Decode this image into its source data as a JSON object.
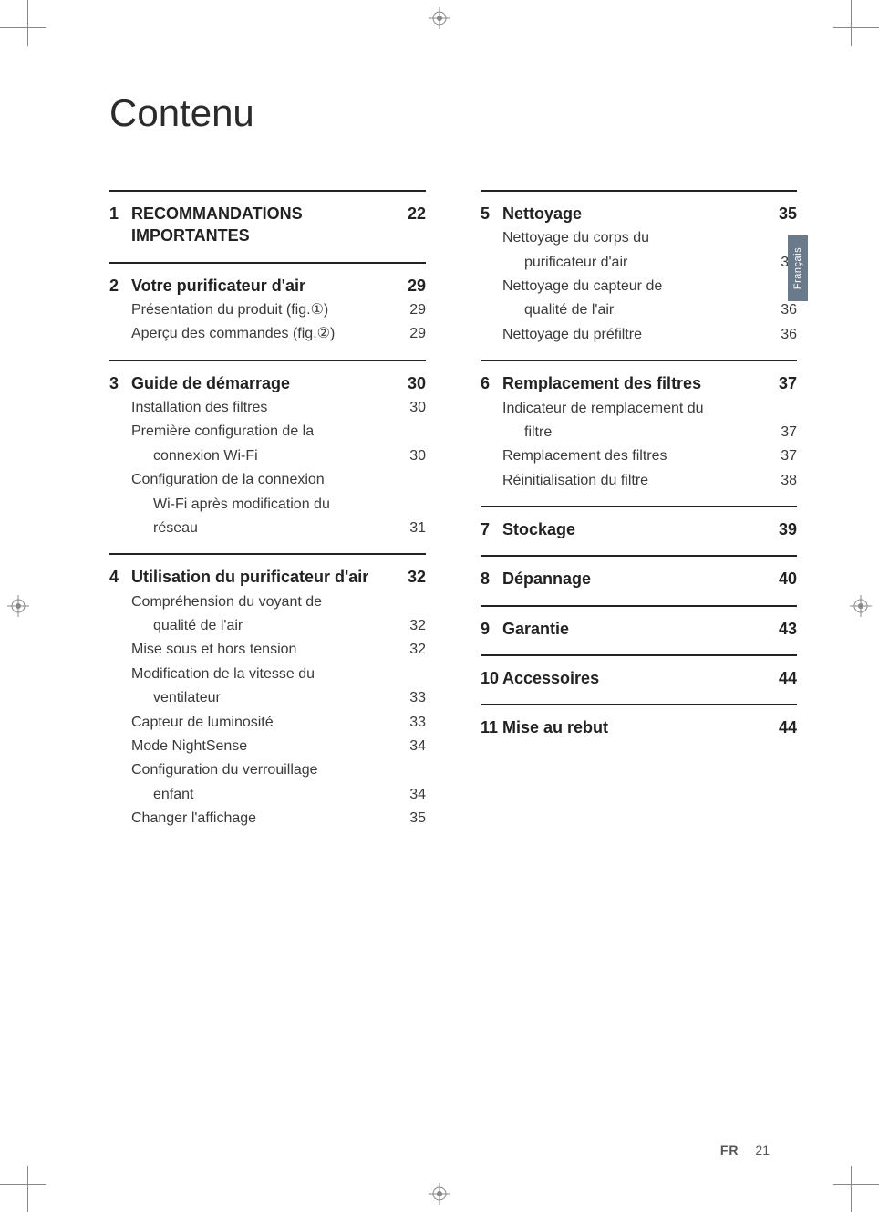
{
  "title": "Contenu",
  "side_tab": "Français",
  "footer_lang": "FR",
  "footer_page": "21",
  "left": [
    {
      "num": "1",
      "head": "RECOMMANDATIONS IMPORTANTES",
      "head_page": "22",
      "items": []
    },
    {
      "num": "2",
      "head": "Votre purificateur d'air",
      "head_page": "29",
      "items": [
        {
          "label": "Présentation du produit (fig.①)",
          "page": "29"
        },
        {
          "label": "Aperçu des commandes (fig.②)",
          "page": "29"
        }
      ]
    },
    {
      "num": "3",
      "head": "Guide de démarrage",
      "head_page": "30",
      "items": [
        {
          "label": "Installation des filtres",
          "page": "30"
        },
        {
          "label": "Première configuration de la",
          "page": ""
        },
        {
          "label_indent": "connexion Wi-Fi",
          "page": "30"
        },
        {
          "label": "Configuration de la connexion",
          "page": ""
        },
        {
          "label_indent": "Wi-Fi après modification du",
          "page": ""
        },
        {
          "label_indent": "réseau",
          "page": "31"
        }
      ]
    },
    {
      "num": "4",
      "head": "Utilisation du purificateur d'air",
      "head_page": "32",
      "items": [
        {
          "label": "Compréhension du voyant de",
          "page": ""
        },
        {
          "label_indent": "qualité de l'air",
          "page": "32"
        },
        {
          "label": "Mise sous et hors tension",
          "page": "32"
        },
        {
          "label": "Modification de la vitesse du",
          "page": ""
        },
        {
          "label_indent": "ventilateur",
          "page": "33"
        },
        {
          "label": "Capteur de luminosité",
          "page": "33"
        },
        {
          "label": "Mode NightSense",
          "page": "34"
        },
        {
          "label": "Configuration du verrouillage",
          "page": ""
        },
        {
          "label_indent": "enfant",
          "page": "34"
        },
        {
          "label": "Changer l'affichage",
          "page": "35"
        }
      ]
    }
  ],
  "right": [
    {
      "num": "5",
      "head": "Nettoyage",
      "head_page": "35",
      "items": [
        {
          "label": "Nettoyage du corps du",
          "page": ""
        },
        {
          "label_indent": "purificateur d'air",
          "page": "35"
        },
        {
          "label": "Nettoyage du capteur de",
          "page": ""
        },
        {
          "label_indent": "qualité de l'air",
          "page": "36"
        },
        {
          "label": "Nettoyage du préfiltre",
          "page": "36"
        }
      ]
    },
    {
      "num": "6",
      "head": "Remplacement des filtres",
      "head_page": "37",
      "items": [
        {
          "label": "Indicateur de remplacement du",
          "page": ""
        },
        {
          "label_indent": "filtre",
          "page": "37"
        },
        {
          "label": "Remplacement des filtres",
          "page": "37"
        },
        {
          "label": "Réinitialisation du filtre",
          "page": "38"
        }
      ]
    },
    {
      "num": "7",
      "head": "Stockage",
      "head_page": "39",
      "items": []
    },
    {
      "num": "8",
      "head": "Dépannage",
      "head_page": "40",
      "items": []
    },
    {
      "num": "9",
      "head": "Garantie",
      "head_page": "43",
      "items": []
    },
    {
      "num": "10",
      "head": "Accessoires",
      "head_page": "44",
      "items": []
    },
    {
      "num": "11",
      "head": "Mise au rebut",
      "head_page": "44",
      "items": []
    }
  ]
}
